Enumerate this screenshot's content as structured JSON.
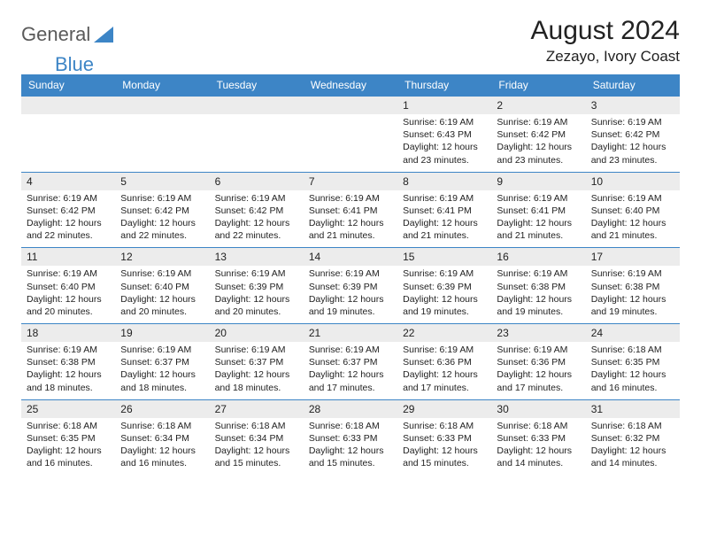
{
  "logo": {
    "text1": "General",
    "text2": "Blue"
  },
  "title": "August 2024",
  "location": "Zezayo, Ivory Coast",
  "colors": {
    "header_bg": "#3d85c6",
    "header_fg": "#ffffff",
    "daynum_bg": "#ececec",
    "row_border": "#3d85c6",
    "text": "#222222",
    "logo_gray": "#5a5a5a",
    "logo_blue": "#3d85c6",
    "page_bg": "#ffffff"
  },
  "fonts": {
    "month_title_pt": 30,
    "location_pt": 17,
    "weekday_pt": 12,
    "daynum_pt": 12,
    "body_pt": 10.5
  },
  "weekdays": [
    "Sunday",
    "Monday",
    "Tuesday",
    "Wednesday",
    "Thursday",
    "Friday",
    "Saturday"
  ],
  "weeks": [
    [
      {
        "n": "",
        "sunrise": "",
        "sunset": "",
        "daylight": ""
      },
      {
        "n": "",
        "sunrise": "",
        "sunset": "",
        "daylight": ""
      },
      {
        "n": "",
        "sunrise": "",
        "sunset": "",
        "daylight": ""
      },
      {
        "n": "",
        "sunrise": "",
        "sunset": "",
        "daylight": ""
      },
      {
        "n": "1",
        "sunrise": "6:19 AM",
        "sunset": "6:43 PM",
        "daylight": "12 hours and 23 minutes."
      },
      {
        "n": "2",
        "sunrise": "6:19 AM",
        "sunset": "6:42 PM",
        "daylight": "12 hours and 23 minutes."
      },
      {
        "n": "3",
        "sunrise": "6:19 AM",
        "sunset": "6:42 PM",
        "daylight": "12 hours and 23 minutes."
      }
    ],
    [
      {
        "n": "4",
        "sunrise": "6:19 AM",
        "sunset": "6:42 PM",
        "daylight": "12 hours and 22 minutes."
      },
      {
        "n": "5",
        "sunrise": "6:19 AM",
        "sunset": "6:42 PM",
        "daylight": "12 hours and 22 minutes."
      },
      {
        "n": "6",
        "sunrise": "6:19 AM",
        "sunset": "6:42 PM",
        "daylight": "12 hours and 22 minutes."
      },
      {
        "n": "7",
        "sunrise": "6:19 AM",
        "sunset": "6:41 PM",
        "daylight": "12 hours and 21 minutes."
      },
      {
        "n": "8",
        "sunrise": "6:19 AM",
        "sunset": "6:41 PM",
        "daylight": "12 hours and 21 minutes."
      },
      {
        "n": "9",
        "sunrise": "6:19 AM",
        "sunset": "6:41 PM",
        "daylight": "12 hours and 21 minutes."
      },
      {
        "n": "10",
        "sunrise": "6:19 AM",
        "sunset": "6:40 PM",
        "daylight": "12 hours and 21 minutes."
      }
    ],
    [
      {
        "n": "11",
        "sunrise": "6:19 AM",
        "sunset": "6:40 PM",
        "daylight": "12 hours and 20 minutes."
      },
      {
        "n": "12",
        "sunrise": "6:19 AM",
        "sunset": "6:40 PM",
        "daylight": "12 hours and 20 minutes."
      },
      {
        "n": "13",
        "sunrise": "6:19 AM",
        "sunset": "6:39 PM",
        "daylight": "12 hours and 20 minutes."
      },
      {
        "n": "14",
        "sunrise": "6:19 AM",
        "sunset": "6:39 PM",
        "daylight": "12 hours and 19 minutes."
      },
      {
        "n": "15",
        "sunrise": "6:19 AM",
        "sunset": "6:39 PM",
        "daylight": "12 hours and 19 minutes."
      },
      {
        "n": "16",
        "sunrise": "6:19 AM",
        "sunset": "6:38 PM",
        "daylight": "12 hours and 19 minutes."
      },
      {
        "n": "17",
        "sunrise": "6:19 AM",
        "sunset": "6:38 PM",
        "daylight": "12 hours and 19 minutes."
      }
    ],
    [
      {
        "n": "18",
        "sunrise": "6:19 AM",
        "sunset": "6:38 PM",
        "daylight": "12 hours and 18 minutes."
      },
      {
        "n": "19",
        "sunrise": "6:19 AM",
        "sunset": "6:37 PM",
        "daylight": "12 hours and 18 minutes."
      },
      {
        "n": "20",
        "sunrise": "6:19 AM",
        "sunset": "6:37 PM",
        "daylight": "12 hours and 18 minutes."
      },
      {
        "n": "21",
        "sunrise": "6:19 AM",
        "sunset": "6:37 PM",
        "daylight": "12 hours and 17 minutes."
      },
      {
        "n": "22",
        "sunrise": "6:19 AM",
        "sunset": "6:36 PM",
        "daylight": "12 hours and 17 minutes."
      },
      {
        "n": "23",
        "sunrise": "6:19 AM",
        "sunset": "6:36 PM",
        "daylight": "12 hours and 17 minutes."
      },
      {
        "n": "24",
        "sunrise": "6:18 AM",
        "sunset": "6:35 PM",
        "daylight": "12 hours and 16 minutes."
      }
    ],
    [
      {
        "n": "25",
        "sunrise": "6:18 AM",
        "sunset": "6:35 PM",
        "daylight": "12 hours and 16 minutes."
      },
      {
        "n": "26",
        "sunrise": "6:18 AM",
        "sunset": "6:34 PM",
        "daylight": "12 hours and 16 minutes."
      },
      {
        "n": "27",
        "sunrise": "6:18 AM",
        "sunset": "6:34 PM",
        "daylight": "12 hours and 15 minutes."
      },
      {
        "n": "28",
        "sunrise": "6:18 AM",
        "sunset": "6:33 PM",
        "daylight": "12 hours and 15 minutes."
      },
      {
        "n": "29",
        "sunrise": "6:18 AM",
        "sunset": "6:33 PM",
        "daylight": "12 hours and 15 minutes."
      },
      {
        "n": "30",
        "sunrise": "6:18 AM",
        "sunset": "6:33 PM",
        "daylight": "12 hours and 14 minutes."
      },
      {
        "n": "31",
        "sunrise": "6:18 AM",
        "sunset": "6:32 PM",
        "daylight": "12 hours and 14 minutes."
      }
    ]
  ],
  "labels": {
    "sunrise": "Sunrise:",
    "sunset": "Sunset:",
    "daylight": "Daylight:"
  }
}
